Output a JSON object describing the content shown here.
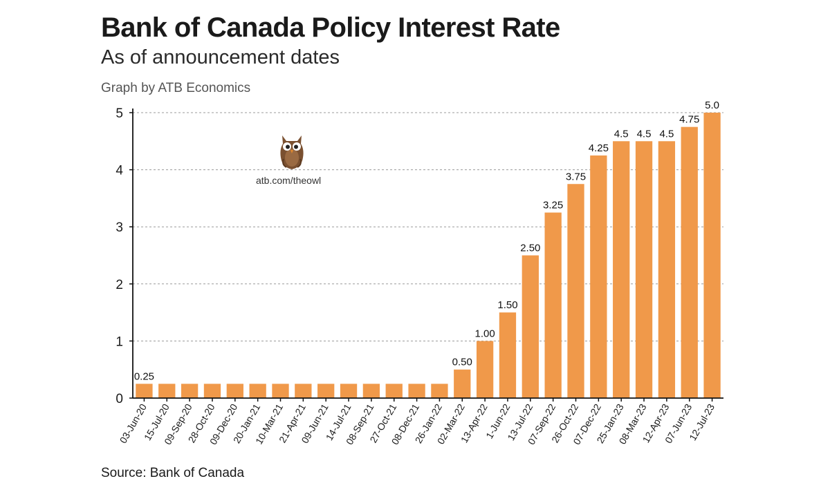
{
  "title": "Bank of Canada Policy Interest Rate",
  "subtitle": "As of announcement dates",
  "byline": "Graph by ATB Economics",
  "source": "Source: Bank of Canada",
  "watermark": {
    "label": "atb.com/theowl",
    "icon": "owl-icon"
  },
  "colors": {
    "bar": "#F0994A",
    "grid": "#9a9a9a",
    "axis": "#111111"
  },
  "chart_data": {
    "type": "bar",
    "title": "Bank of Canada Policy Interest Rate",
    "subtitle": "As of announcement dates",
    "xlabel": "",
    "ylabel": "",
    "ylim": [
      0,
      5
    ],
    "yticks": [
      "0",
      "1",
      "2",
      "3",
      "4",
      "5"
    ],
    "grid": true,
    "categories": [
      "03-Jun-20",
      "15-Jul-20",
      "09-Sep-20",
      "28-Oct-20",
      "09-Dec-20",
      "20-Jan-21",
      "10-Mar-21",
      "21-Apr-21",
      "09-Jun-21",
      "14-Jul-21",
      "08-Sep-21",
      "27-Oct-21",
      "08-Dec-21",
      "26-Jan-22",
      "02-Mar-22",
      "13-Apr-22",
      "1-Jun-22",
      "13-Jul-22",
      "07-Sep-22",
      "26-Oct-22",
      "07-Dec-22",
      "25-Jan-23",
      "08-Mar-23",
      "12-Apr-23",
      "07-Jun-23",
      "12-Jul-23"
    ],
    "values": [
      0.25,
      0.25,
      0.25,
      0.25,
      0.25,
      0.25,
      0.25,
      0.25,
      0.25,
      0.25,
      0.25,
      0.25,
      0.25,
      0.25,
      0.5,
      1.0,
      1.5,
      2.5,
      3.25,
      3.75,
      4.25,
      4.5,
      4.5,
      4.5,
      4.75,
      5.0
    ],
    "data_labels": [
      "0.25",
      "",
      "",
      "",
      "",
      "",
      "",
      "",
      "",
      "",
      "",
      "",
      "",
      "",
      "0.50",
      "1.00",
      "1.50",
      "2.50",
      "3.25",
      "3.75",
      "4.25",
      "4.5",
      "4.5",
      "4.5",
      "4.75",
      "5.0"
    ]
  }
}
